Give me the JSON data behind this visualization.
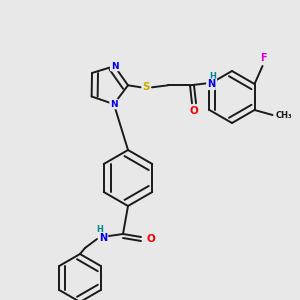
{
  "background_color": "#e8e8e8",
  "bond_color": "#1a1a1a",
  "atom_colors": {
    "N": "#0000ee",
    "O": "#ee0000",
    "S": "#ccaa00",
    "F": "#dd00dd",
    "H": "#008888",
    "C": "#1a1a1a"
  },
  "lw": 1.4,
  "dbo": 0.008,
  "figsize": [
    3.0,
    3.0
  ],
  "dpi": 100
}
